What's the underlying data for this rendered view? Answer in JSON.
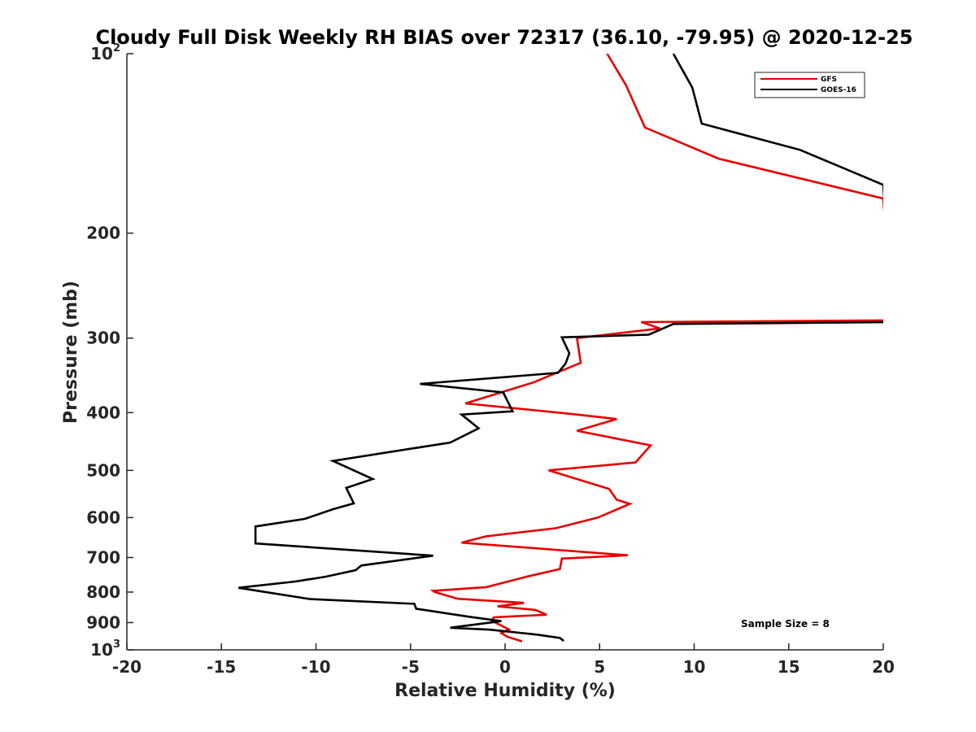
{
  "chart_data": {
    "type": "line",
    "title": "Cloudy Full Disk Weekly RH BIAS over 72317 (36.10, -79.95) @ 2020-12-25",
    "xlabel": "Relative Humidity (%)",
    "ylabel": "Pressure (mb)",
    "xlim": [
      -20,
      20
    ],
    "ylim": [
      100,
      1000
    ],
    "y_scale": "log",
    "y_reversed": true,
    "grid": false,
    "legend_placement": "top-right",
    "x_ticks": [
      -20,
      -15,
      -10,
      -5,
      0,
      5,
      10,
      15,
      20
    ],
    "x_tick_labels": [
      "-20",
      "-15",
      "-10",
      "-5",
      "0",
      "5",
      "10",
      "15",
      "20"
    ],
    "y_ticks": [
      100,
      200,
      300,
      400,
      500,
      600,
      700,
      800,
      900,
      1000
    ],
    "y_tick_labels": [
      {
        "base": "10",
        "sup": "2"
      },
      {
        "base": "200",
        "sup": ""
      },
      {
        "base": "300",
        "sup": ""
      },
      {
        "base": "400",
        "sup": ""
      },
      {
        "base": "500",
        "sup": ""
      },
      {
        "base": "600",
        "sup": ""
      },
      {
        "base": "700",
        "sup": ""
      },
      {
        "base": "800",
        "sup": ""
      },
      {
        "base": "900",
        "sup": ""
      },
      {
        "base": "10",
        "sup": "3"
      }
    ],
    "annotation": "Sample Size = 8",
    "series": [
      {
        "name": "GFS",
        "color": "#e60000",
        "points": [
          {
            "p": 100,
            "x": 5.4
          },
          {
            "p": 113,
            "x": 6.4
          },
          {
            "p": 133,
            "x": 7.4
          },
          {
            "p": 150,
            "x": 11.3
          },
          {
            "p": 175,
            "x": 20.0
          },
          {
            "p": 280,
            "x": 20.5
          },
          {
            "p": 282,
            "x": 7.2
          },
          {
            "p": 289,
            "x": 8.2
          },
          {
            "p": 300,
            "x": 3.8
          },
          {
            "p": 330,
            "x": 4.0
          },
          {
            "p": 356,
            "x": 1.5
          },
          {
            "p": 386,
            "x": -2.1
          },
          {
            "p": 402,
            "x": 3.5
          },
          {
            "p": 410,
            "x": 5.9
          },
          {
            "p": 429,
            "x": 3.8
          },
          {
            "p": 454,
            "x": 7.7
          },
          {
            "p": 485,
            "x": 6.9
          },
          {
            "p": 500,
            "x": 2.3
          },
          {
            "p": 537,
            "x": 5.5
          },
          {
            "p": 560,
            "x": 5.9
          },
          {
            "p": 569,
            "x": 6.6
          },
          {
            "p": 600,
            "x": 4.9
          },
          {
            "p": 625,
            "x": 2.7
          },
          {
            "p": 645,
            "x": -1.0
          },
          {
            "p": 661,
            "x": -2.3
          },
          {
            "p": 694,
            "x": 6.5
          },
          {
            "p": 703,
            "x": 3.0
          },
          {
            "p": 732,
            "x": 2.9
          },
          {
            "p": 753,
            "x": 1.2
          },
          {
            "p": 785,
            "x": -1.0
          },
          {
            "p": 796,
            "x": -3.8
          },
          {
            "p": 800,
            "x": -3.7
          },
          {
            "p": 821,
            "x": -2.5
          },
          {
            "p": 834,
            "x": 1.0
          },
          {
            "p": 845,
            "x": -0.4
          },
          {
            "p": 857,
            "x": 1.6
          },
          {
            "p": 873,
            "x": 2.2
          },
          {
            "p": 882,
            "x": -0.6
          },
          {
            "p": 894,
            "x": -0.7
          },
          {
            "p": 924,
            "x": 0.2
          },
          {
            "p": 937,
            "x": -0.2
          },
          {
            "p": 950,
            "x": 0.1
          },
          {
            "p": 968,
            "x": 0.9
          }
        ]
      },
      {
        "name": "GOES-16",
        "color": "#000000",
        "points": [
          {
            "p": 100,
            "x": 8.9
          },
          {
            "p": 114,
            "x": 9.9
          },
          {
            "p": 131,
            "x": 10.4
          },
          {
            "p": 145,
            "x": 15.6
          },
          {
            "p": 166,
            "x": 20.0
          },
          {
            "p": 282,
            "x": 20.5
          },
          {
            "p": 284,
            "x": 8.9
          },
          {
            "p": 296,
            "x": 7.6
          },
          {
            "p": 299,
            "x": 3.0
          },
          {
            "p": 318,
            "x": 3.4
          },
          {
            "p": 331,
            "x": 3.2
          },
          {
            "p": 343,
            "x": 2.8
          },
          {
            "p": 358,
            "x": -4.5
          },
          {
            "p": 370,
            "x": -0.1
          },
          {
            "p": 398,
            "x": 0.4
          },
          {
            "p": 403,
            "x": -2.3
          },
          {
            "p": 425,
            "x": -1.4
          },
          {
            "p": 449,
            "x": -2.9
          },
          {
            "p": 482,
            "x": -9.1
          },
          {
            "p": 517,
            "x": -7.0
          },
          {
            "p": 535,
            "x": -8.4
          },
          {
            "p": 568,
            "x": -8.0
          },
          {
            "p": 581,
            "x": -9.1
          },
          {
            "p": 603,
            "x": -10.6
          },
          {
            "p": 621,
            "x": -13.2
          },
          {
            "p": 663,
            "x": -13.2
          },
          {
            "p": 695,
            "x": -3.8
          },
          {
            "p": 722,
            "x": -7.6
          },
          {
            "p": 735,
            "x": -7.9
          },
          {
            "p": 754,
            "x": -9.5
          },
          {
            "p": 768,
            "x": -11.1
          },
          {
            "p": 787,
            "x": -14.1
          },
          {
            "p": 822,
            "x": -10.3
          },
          {
            "p": 837,
            "x": -4.8
          },
          {
            "p": 853,
            "x": -4.7
          },
          {
            "p": 880,
            "x": -1.9
          },
          {
            "p": 895,
            "x": -0.2
          },
          {
            "p": 918,
            "x": -2.9
          },
          {
            "p": 925,
            "x": -0.8
          },
          {
            "p": 943,
            "x": 1.7
          },
          {
            "p": 955,
            "x": 2.9
          },
          {
            "p": 966,
            "x": 3.1
          }
        ]
      }
    ]
  }
}
